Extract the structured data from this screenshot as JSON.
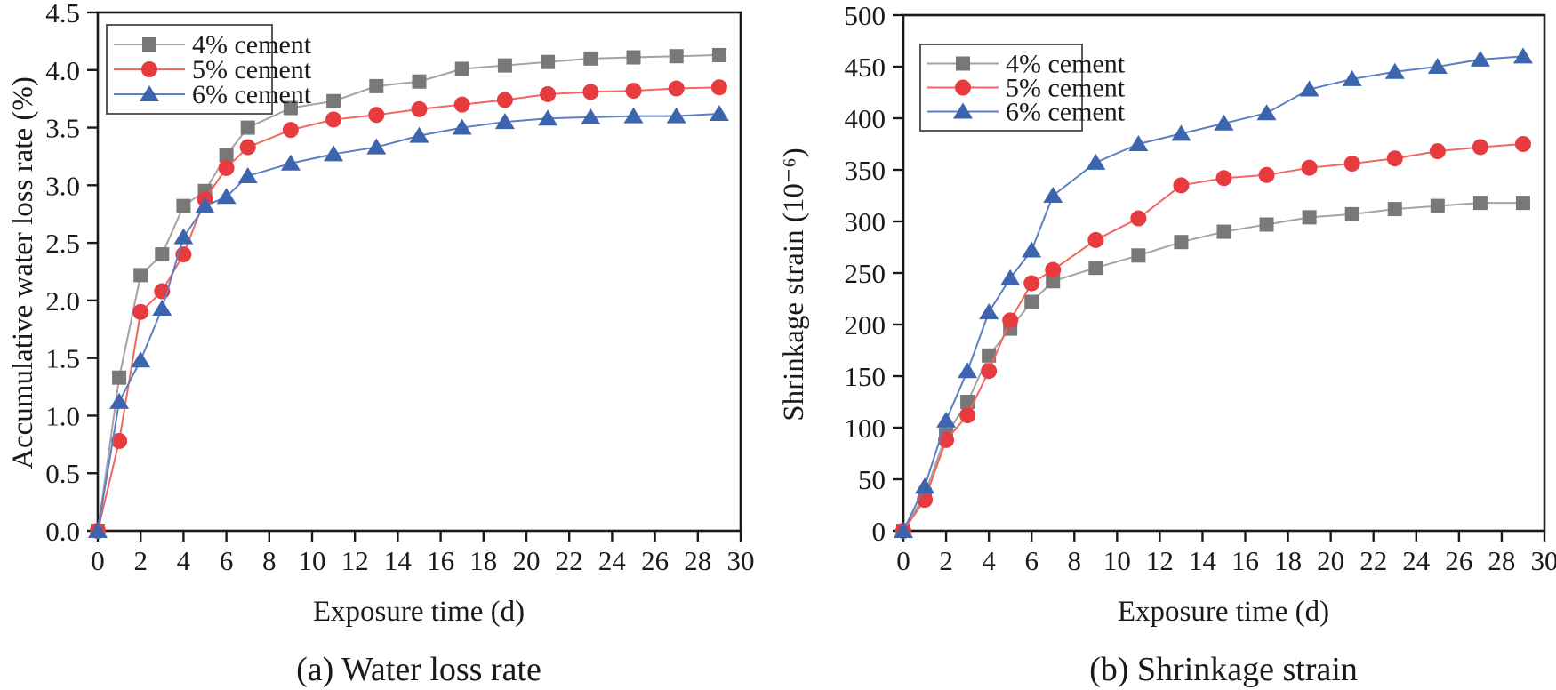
{
  "figure": {
    "background": "#ffffff",
    "text_color": "#1a1a1a",
    "axis_color": "#1a1a1a",
    "legend_border_color": "#5a5a5a"
  },
  "chart_data": [
    {
      "id": "a",
      "type": "line",
      "caption": "(a) Water loss rate",
      "xlabel": "Exposure time (d)",
      "ylabel": "Accumulative water loss rate (%)",
      "xlim": [
        0,
        30
      ],
      "ylim": [
        0,
        4.5
      ],
      "x_ticks": [
        0,
        2,
        4,
        6,
        8,
        10,
        12,
        14,
        16,
        18,
        20,
        22,
        24,
        26,
        28,
        30
      ],
      "y_ticks": [
        "0.0",
        "0.5",
        "1.0",
        "1.5",
        "2.0",
        "2.5",
        "3.0",
        "3.5",
        "4.0",
        "4.5"
      ],
      "grid": false,
      "legend_position": "upper-left",
      "x": [
        0,
        1,
        2,
        3,
        4,
        5,
        6,
        7,
        9,
        11,
        13,
        15,
        17,
        19,
        21,
        23,
        25,
        27,
        29
      ],
      "series": [
        {
          "name": "4% cement",
          "marker": "square",
          "marker_color": "#787878",
          "line_color": "#a3a3a3",
          "values": [
            0,
            1.33,
            2.22,
            2.4,
            2.82,
            2.95,
            3.26,
            3.5,
            3.67,
            3.73,
            3.86,
            3.9,
            4.01,
            4.04,
            4.07,
            4.1,
            4.11,
            4.12,
            4.13
          ]
        },
        {
          "name": "5% cement",
          "marker": "circle",
          "marker_color": "#e63c40",
          "line_color": "#f2665f",
          "values": [
            0,
            0.78,
            1.9,
            2.08,
            2.4,
            2.88,
            3.15,
            3.33,
            3.48,
            3.57,
            3.61,
            3.66,
            3.7,
            3.74,
            3.79,
            3.81,
            3.82,
            3.84,
            3.85
          ]
        },
        {
          "name": "6% cement",
          "marker": "triangle",
          "marker_color": "#3d65ad",
          "line_color": "#5b7fc4",
          "values": [
            0,
            1.12,
            1.48,
            1.93,
            2.55,
            2.82,
            2.9,
            3.08,
            3.19,
            3.27,
            3.33,
            3.43,
            3.5,
            3.55,
            3.58,
            3.59,
            3.6,
            3.6,
            3.62
          ]
        }
      ]
    },
    {
      "id": "b",
      "type": "line",
      "caption": "(b) Shrinkage strain",
      "xlabel": "Exposure time (d)",
      "ylabel": "Shrinkage strain (10⁻⁶)",
      "xlim": [
        0,
        30
      ],
      "ylim": [
        0,
        500
      ],
      "x_ticks": [
        0,
        2,
        4,
        6,
        8,
        10,
        12,
        14,
        16,
        18,
        20,
        22,
        24,
        26,
        28,
        30
      ],
      "y_ticks": [
        "0",
        "50",
        "100",
        "150",
        "200",
        "250",
        "300",
        "350",
        "400",
        "450",
        "500"
      ],
      "grid": false,
      "legend_position": "upper-left",
      "x": [
        0,
        1,
        2,
        3,
        4,
        5,
        6,
        7,
        9,
        11,
        13,
        15,
        17,
        19,
        21,
        23,
        25,
        27,
        29
      ],
      "series": [
        {
          "name": "4% cement",
          "marker": "square",
          "marker_color": "#787878",
          "line_color": "#a3a3a3",
          "values": [
            0,
            35,
            93,
            125,
            170,
            196,
            222,
            242,
            255,
            267,
            280,
            290,
            297,
            304,
            307,
            312,
            315,
            318,
            318
          ]
        },
        {
          "name": "5% cement",
          "marker": "circle",
          "marker_color": "#e63c40",
          "line_color": "#f2665f",
          "values": [
            0,
            30,
            88,
            112,
            155,
            204,
            240,
            253,
            282,
            303,
            335,
            342,
            345,
            352,
            356,
            361,
            368,
            372,
            375
          ]
        },
        {
          "name": "6% cement",
          "marker": "triangle",
          "marker_color": "#3d65ad",
          "line_color": "#5b7fc4",
          "values": [
            0,
            43,
            107,
            155,
            212,
            245,
            272,
            325,
            357,
            375,
            385,
            395,
            405,
            428,
            438,
            445,
            450,
            457,
            460
          ]
        }
      ]
    }
  ]
}
